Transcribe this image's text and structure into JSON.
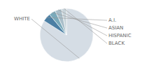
{
  "chart_data": {
    "type": "pie",
    "categories": [
      "WHITE",
      "A.I.",
      "ASIAN",
      "HISPANIC",
      "BLACK"
    ],
    "values": [
      84,
      5,
      4,
      4,
      3
    ],
    "colors": [
      "#d5dde5",
      "#4b7fa4",
      "#7aaabb",
      "#a9bec9",
      "#c8d4da"
    ]
  }
}
